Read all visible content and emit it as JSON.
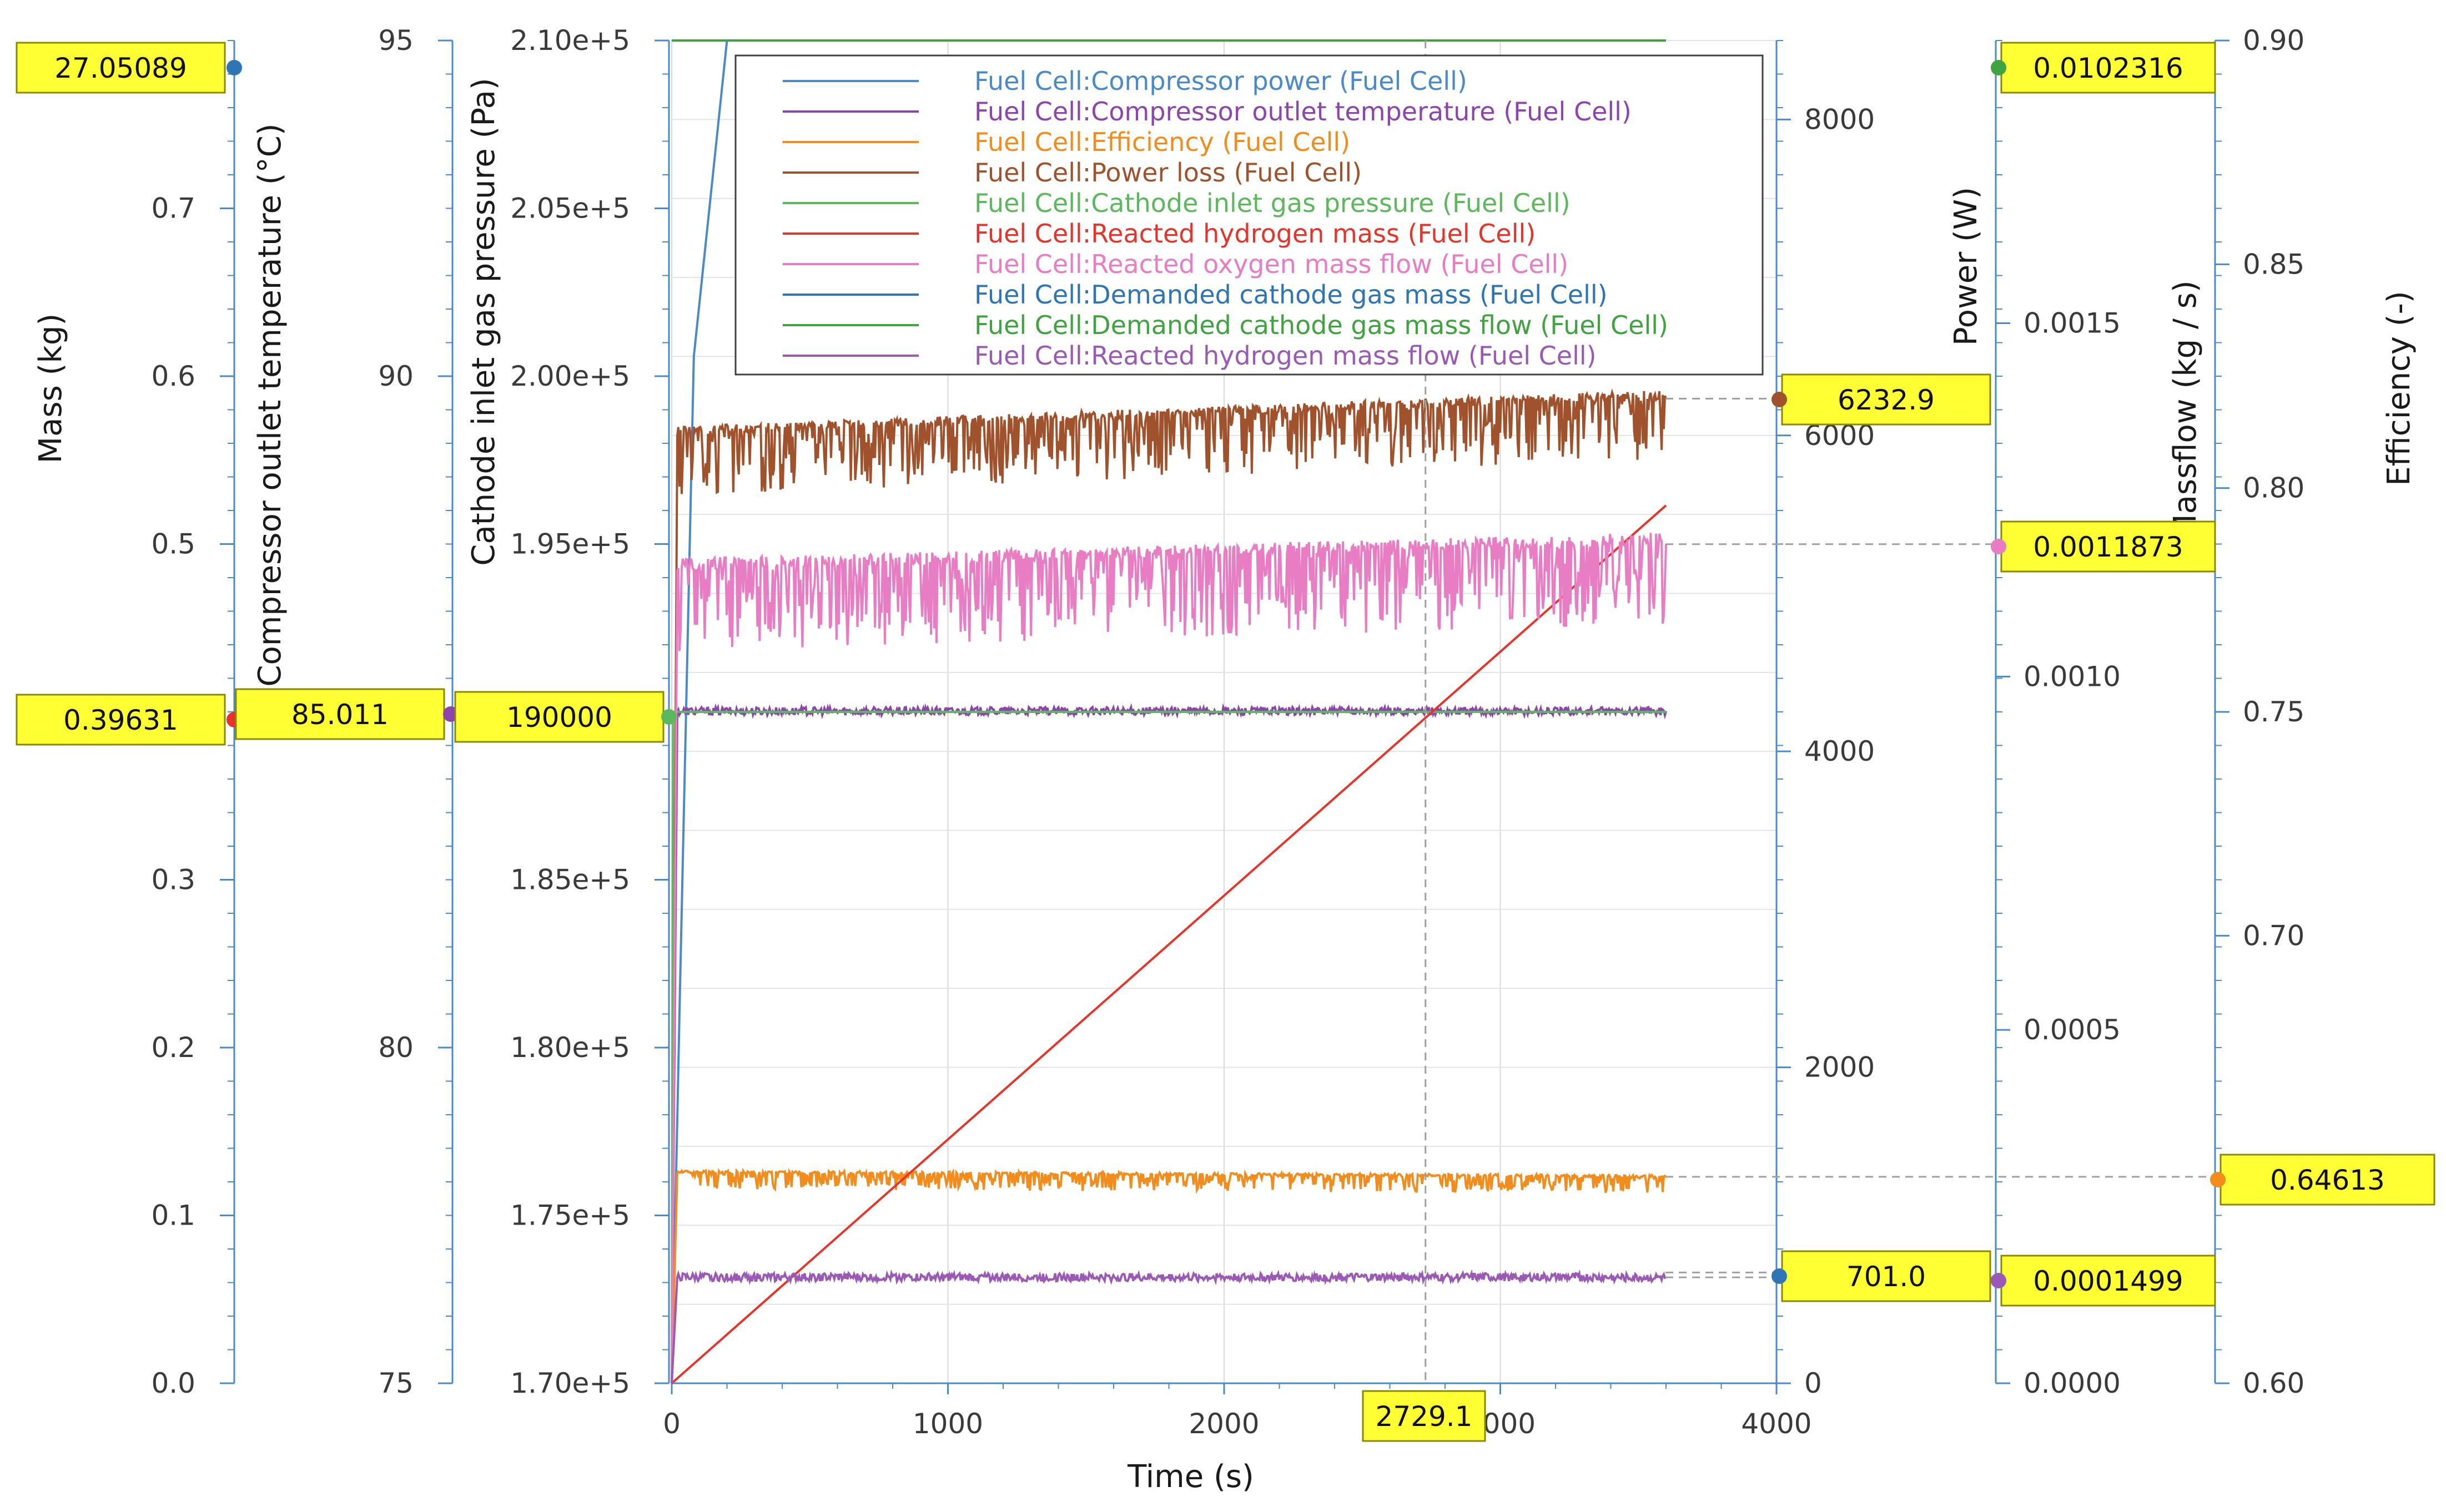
{
  "chart_data": {
    "type": "line",
    "x_axis": {
      "title": "Time (s)",
      "range": [
        0,
        4000
      ],
      "ticks": [
        "0",
        "1000",
        "2000",
        "3000",
        "4000"
      ],
      "grid": true
    },
    "y_axes": [
      {
        "id": "mass",
        "title": "Mass (kg)",
        "range": [
          0.0,
          0.8
        ],
        "ticks": [
          "0.0",
          "0.1",
          "0.2",
          "0.3",
          "0.5",
          "0.6",
          "0.7"
        ],
        "side": "left"
      },
      {
        "id": "temp",
        "title": "Compressor outlet temperature (°C)",
        "range": [
          75,
          95
        ],
        "ticks": [
          "75",
          "80",
          "90",
          "95"
        ],
        "side": "left"
      },
      {
        "id": "press",
        "title": "Cathode inlet gas pressure (Pa)",
        "range": [
          170000,
          210000
        ],
        "ticks": [
          "1.70e+5",
          "1.75e+5",
          "1.80e+5",
          "1.85e+5",
          "1.95e+5",
          "2.00e+5",
          "2.05e+5",
          "2.10e+5"
        ],
        "side": "left"
      },
      {
        "id": "power",
        "title": "Power (W)",
        "range": [
          0,
          8500
        ],
        "ticks": [
          "0",
          "2000",
          "4000",
          "6000",
          "8000"
        ],
        "side": "right"
      },
      {
        "id": "massflow",
        "title": "Massflow (kg / s)",
        "range": [
          0,
          0.0019
        ],
        "ticks": [
          "0.0000",
          "0.0005",
          "0.0010",
          "0.0015"
        ],
        "side": "right"
      },
      {
        "id": "eff",
        "title": "Efficiency (-)",
        "range": [
          0.6,
          0.9
        ],
        "ticks": [
          "0.60",
          "0.70",
          "0.75",
          "0.80",
          "0.85",
          "0.90"
        ],
        "side": "right"
      }
    ],
    "series": [
      {
        "name": "Fuel Cell:Compressor power (Fuel Cell)",
        "color": "#4a8ac9",
        "axis": "power",
        "x": [
          0,
          30,
          80,
          200,
          3600
        ],
        "y": [
          0,
          2500,
          6500,
          8500,
          8500
        ]
      },
      {
        "name": "Fuel Cell:Compressor outlet temperature (Fuel Cell)",
        "color": "#8e44ad",
        "axis": "temp",
        "x": [
          0,
          20,
          3600
        ],
        "y": [
          75,
          85.011,
          85.011
        ]
      },
      {
        "name": "Fuel Cell:Efficiency (Fuel Cell)",
        "color": "#f28c1c",
        "axis": "eff",
        "x": [
          0,
          20,
          3600
        ],
        "y": [
          0.6,
          0.647,
          0.646
        ]
      },
      {
        "name": "Fuel Cell:Power loss (Fuel Cell)",
        "color": "#a0522d",
        "axis": "power",
        "x": [
          0,
          20,
          3600
        ],
        "y": [
          0,
          6000,
          6232.9
        ]
      },
      {
        "name": "Fuel Cell:Cathode inlet gas pressure (Fuel Cell)",
        "color": "#5cb85c",
        "axis": "press",
        "x": [
          0,
          5,
          3600
        ],
        "y": [
          170000,
          190000,
          190000
        ]
      },
      {
        "name": "Fuel Cell:Reacted hydrogen mass (Fuel Cell)",
        "color": "#e8332a",
        "axis": "mass",
        "x": [
          0,
          3600
        ],
        "y": [
          0,
          0.523
        ]
      },
      {
        "name": "Fuel Cell:Reacted oxygen mass flow (Fuel Cell)",
        "color": "#e87dc3",
        "axis": "massflow",
        "x": [
          0,
          20,
          3600
        ],
        "y": [
          0,
          0.00115,
          0.0011873
        ]
      },
      {
        "name": "Fuel Cell:Demanded cathode gas mass (Fuel Cell)",
        "color": "#2e75b6",
        "axis": "mass",
        "x": [
          0,
          3600
        ],
        "y": [
          0.8,
          0.8
        ]
      },
      {
        "name": "Fuel Cell:Demanded cathode gas mass flow (Fuel Cell)",
        "color": "#3fa33f",
        "axis": "massflow",
        "x": [
          0,
          3600
        ],
        "y": [
          0.0019,
          0.0019
        ]
      },
      {
        "name": "Fuel Cell:Reacted hydrogen mass flow (Fuel Cell)",
        "color": "#9b59b6",
        "axis": "massflow",
        "x": [
          0,
          20,
          3600
        ],
        "y": [
          0,
          0.00015,
          0.0001499
        ]
      }
    ],
    "cursor": {
      "x": 2729.1
    },
    "cursor_values": {
      "x": "2729.1",
      "mass_top": "27.05089",
      "mass": "0.39631",
      "temp": "85.011",
      "press": "190000",
      "power_loss": "6232.9",
      "power_low": "701.0",
      "massflow_top": "0.0102316",
      "massflow_oxygen": "0.0011873",
      "massflow_h2": "0.0001499",
      "efficiency": "0.64613"
    },
    "legend_position": "top-center"
  }
}
